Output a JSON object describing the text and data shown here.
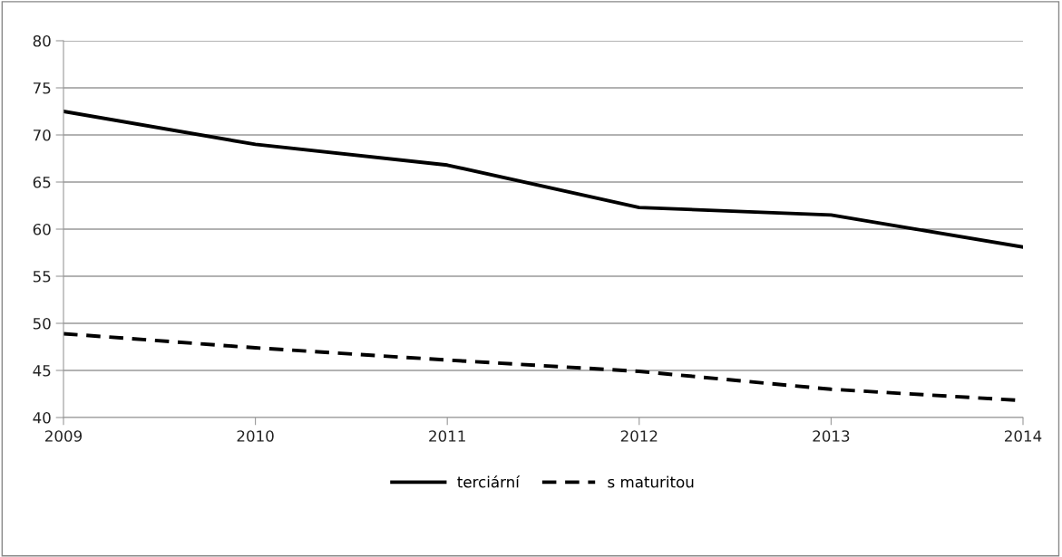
{
  "chart_data": {
    "type": "line",
    "x": [
      2009,
      2010,
      2011,
      2012,
      2013,
      2014
    ],
    "xlim": [
      2009,
      2014
    ],
    "xticks": [
      2009,
      2010,
      2011,
      2012,
      2013,
      2014
    ],
    "ylim": [
      40,
      80
    ],
    "yticks": [
      40,
      45,
      50,
      55,
      60,
      65,
      70,
      75,
      80
    ],
    "grid": "y",
    "legend": "bottom",
    "series": [
      {
        "name": "terciární",
        "color": "#000000",
        "line_style": "solid",
        "values": [
          72.5,
          69.0,
          66.8,
          62.3,
          61.5,
          58.1
        ]
      },
      {
        "name": "s maturitou",
        "color": "#000000",
        "line_style": "dashed",
        "values": [
          48.9,
          47.4,
          46.1,
          44.9,
          43.0,
          41.8
        ]
      }
    ]
  }
}
